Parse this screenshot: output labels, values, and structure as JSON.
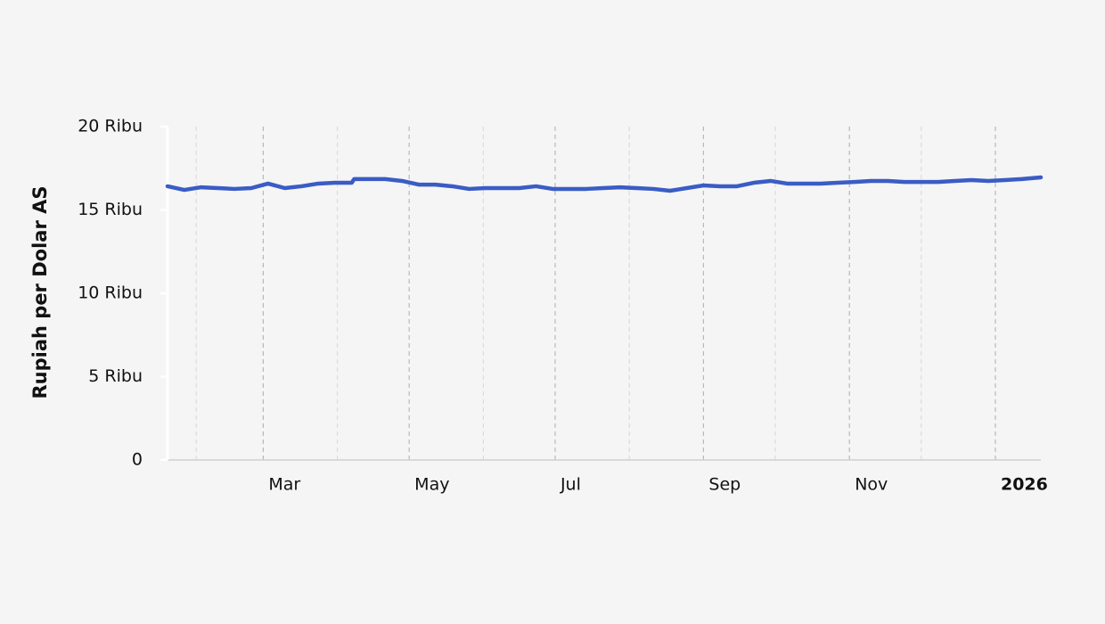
{
  "chart_data": {
    "type": "line",
    "y_label": "Rupiah per Dolar AS",
    "xlim": [
      "2025-01-20",
      "2026-01-20"
    ],
    "xticks": [
      {
        "value": "2025-03-01",
        "label": "Mar"
      },
      {
        "value": "2025-05-01",
        "label": "May"
      },
      {
        "value": "2025-07-01",
        "label": "Jul"
      },
      {
        "value": "2025-09-01",
        "label": "Sep"
      },
      {
        "value": "2025-11-01",
        "label": "Nov"
      },
      {
        "value": "2026-01-01",
        "label": "2026",
        "bold": true
      }
    ],
    "xticks_minor": [
      "2025-02-01",
      "2025-04-01",
      "2025-06-01",
      "2025-08-01",
      "2025-10-01",
      "2025-12-01"
    ],
    "ylim": [
      0,
      20000
    ],
    "yticks": [
      0,
      {
        "value": 5000,
        "label": "5 Ribu"
      },
      {
        "value": 10000,
        "label": "10 Ribu"
      },
      {
        "value": 15000,
        "label": "15 Ribu"
      },
      {
        "value": 20000,
        "label": "20 Ribu"
      }
    ],
    "grid": true,
    "series": [
      {
        "color": "#3a5cc5",
        "x": [
          "2025-01-20",
          "2025-01-27",
          "2025-02-03",
          "2025-02-10",
          "2025-02-17",
          "2025-02-24",
          "2025-03-03",
          "2025-03-10",
          "2025-03-17",
          "2025-03-24",
          "2025-03-31",
          "2025-04-07",
          "2025-04-08",
          "2025-04-14",
          "2025-04-21",
          "2025-04-28",
          "2025-05-05",
          "2025-05-12",
          "2025-05-19",
          "2025-05-26",
          "2025-06-02",
          "2025-06-09",
          "2025-06-16",
          "2025-06-23",
          "2025-06-30",
          "2025-07-07",
          "2025-07-14",
          "2025-07-21",
          "2025-07-28",
          "2025-08-04",
          "2025-08-11",
          "2025-08-18",
          "2025-08-25",
          "2025-09-01",
          "2025-09-08",
          "2025-09-15",
          "2025-09-22",
          "2025-09-29",
          "2025-10-06",
          "2025-10-13",
          "2025-10-20",
          "2025-10-27",
          "2025-11-03",
          "2025-11-10",
          "2025-11-17",
          "2025-11-24",
          "2025-12-01",
          "2025-12-08",
          "2025-12-15",
          "2025-12-22",
          "2025-12-29",
          "2026-01-05",
          "2026-01-12",
          "2026-01-20"
        ],
        "values": [
          16420,
          16200,
          16360,
          16310,
          16260,
          16310,
          16580,
          16310,
          16420,
          16580,
          16630,
          16630,
          16850,
          16850,
          16850,
          16740,
          16520,
          16520,
          16420,
          16260,
          16310,
          16310,
          16310,
          16420,
          16260,
          16260,
          16260,
          16310,
          16360,
          16310,
          16260,
          16150,
          16310,
          16470,
          16420,
          16420,
          16630,
          16740,
          16580,
          16580,
          16580,
          16630,
          16680,
          16740,
          16740,
          16680,
          16680,
          16680,
          16740,
          16790,
          16740,
          16790,
          16850,
          16950
        ]
      }
    ]
  }
}
